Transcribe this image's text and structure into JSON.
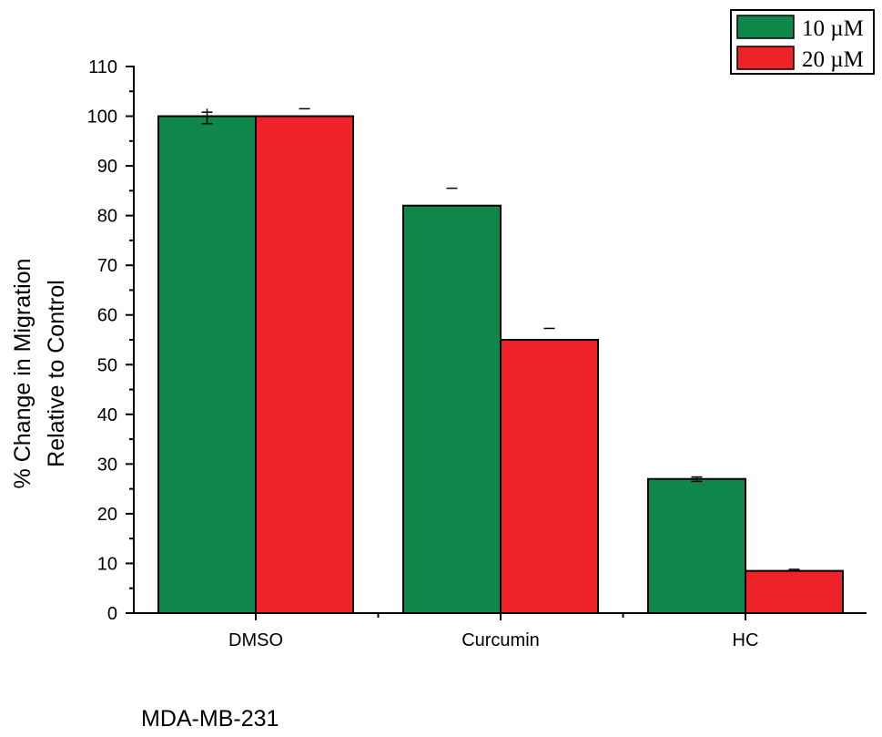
{
  "chart_data": {
    "type": "bar",
    "categories": [
      "DMSO",
      "Curcumin",
      "HC"
    ],
    "series": [
      {
        "name": "10 µM",
        "values": [
          100,
          82,
          27
        ],
        "errors": [
          1.5,
          0,
          0.5
        ]
      },
      {
        "name": "20 µM",
        "values": [
          100,
          55,
          8.5
        ],
        "errors": [
          0,
          0,
          0
        ]
      }
    ],
    "error_caps": [
      [
        100.8,
        85.5,
        27.4
      ],
      [
        101.5,
        57.3,
        8.8
      ]
    ],
    "ylabel_line1": "% Change in Migration",
    "ylabel_line2": "Relative to Control",
    "xlabel": "",
    "ylim": [
      0,
      110
    ],
    "yticks": [
      0,
      10,
      20,
      30,
      40,
      50,
      60,
      70,
      80,
      90,
      100,
      110
    ],
    "legend_position": "top-right",
    "grid": false,
    "colors": [
      "#10874a",
      "#ee2229"
    ]
  },
  "footnote": "MDA-MB-231"
}
